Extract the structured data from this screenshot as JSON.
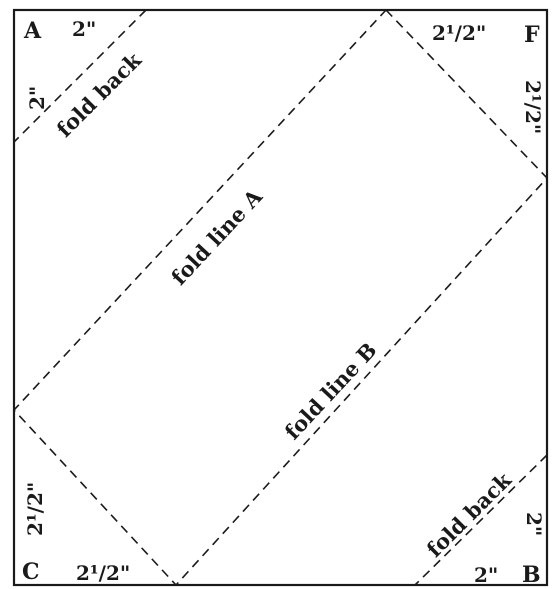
{
  "corners": {
    "top_left": "A",
    "top_right": "F",
    "bottom_left": "C",
    "bottom_right": "B"
  },
  "measurements": {
    "top_left_top": "2\"",
    "top_left_side": "2\"",
    "top_right_top": "2¹/2\"",
    "top_right_side": "2¹/2\"",
    "bottom_left_side": "2¹/2\"",
    "bottom_left_bottom": "2¹/2\"",
    "bottom_right_side": "2\"",
    "bottom_right_bottom": "2\""
  },
  "fold_labels": {
    "fold_back_top": "fold back",
    "fold_line_a": "fold line A",
    "fold_line_b": "fold line B",
    "fold_back_bottom": "fold back"
  },
  "colors": {
    "ink": "#1a1a1a",
    "paper": "#ffffff"
  }
}
